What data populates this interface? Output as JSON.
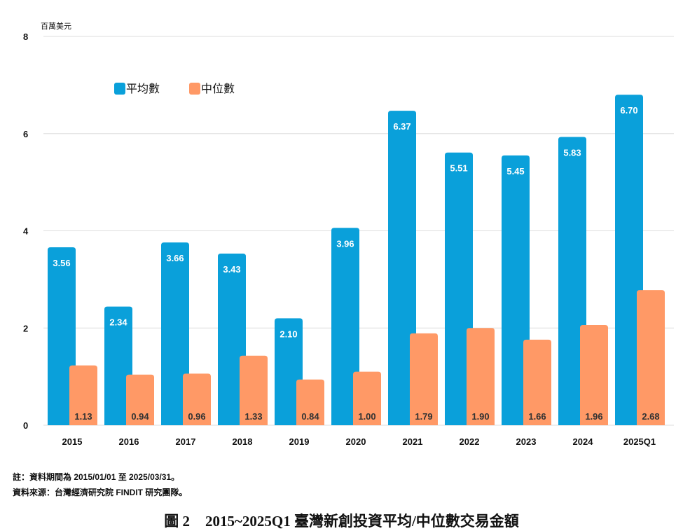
{
  "chart_data": {
    "type": "bar",
    "unit_label": "百萬美元",
    "categories": [
      "2015",
      "2016",
      "2017",
      "2018",
      "2019",
      "2020",
      "2021",
      "2022",
      "2023",
      "2024",
      "2025Q1"
    ],
    "series": [
      {
        "name": "平均數",
        "color": "#0AA0DA",
        "values": [
          3.56,
          2.34,
          3.66,
          3.43,
          2.1,
          3.96,
          6.37,
          5.51,
          5.45,
          5.83,
          6.7
        ]
      },
      {
        "name": "中位數",
        "color": "#FF9966",
        "values": [
          1.13,
          0.94,
          0.96,
          1.33,
          0.84,
          1.0,
          1.79,
          1.9,
          1.66,
          1.96,
          2.68
        ]
      }
    ],
    "ylim": [
      0,
      8
    ],
    "yticks": [
      "0",
      "2",
      "4",
      "6",
      "8"
    ],
    "legend": "top-left",
    "grid": true
  },
  "notes": {
    "note": "註：資料期間為 2015/01/01 至 2025/03/31。",
    "source": "資料來源：台灣經濟研究院 FINDIT 研究團隊。"
  },
  "caption": {
    "figure": "圖 2",
    "title": "2015~2025Q1 臺灣新創投資平均/中位數交易金額"
  }
}
